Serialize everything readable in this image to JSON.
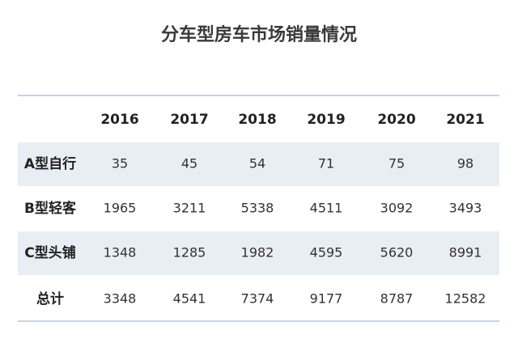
{
  "title": "分车型房车市场销量情况",
  "table": {
    "columns": [
      "2016",
      "2017",
      "2018",
      "2019",
      "2020",
      "2021"
    ],
    "rows": [
      {
        "label": "A型自行",
        "values": [
          35,
          45,
          54,
          71,
          75,
          98
        ]
      },
      {
        "label": "B型轻客",
        "values": [
          1965,
          3211,
          5338,
          4511,
          3092,
          3493
        ]
      },
      {
        "label": "C型头铺",
        "values": [
          1348,
          1285,
          1982,
          4595,
          5620,
          8991
        ]
      },
      {
        "label": "总计",
        "values": [
          3348,
          4541,
          7374,
          9177,
          8787,
          12582
        ]
      }
    ]
  }
}
